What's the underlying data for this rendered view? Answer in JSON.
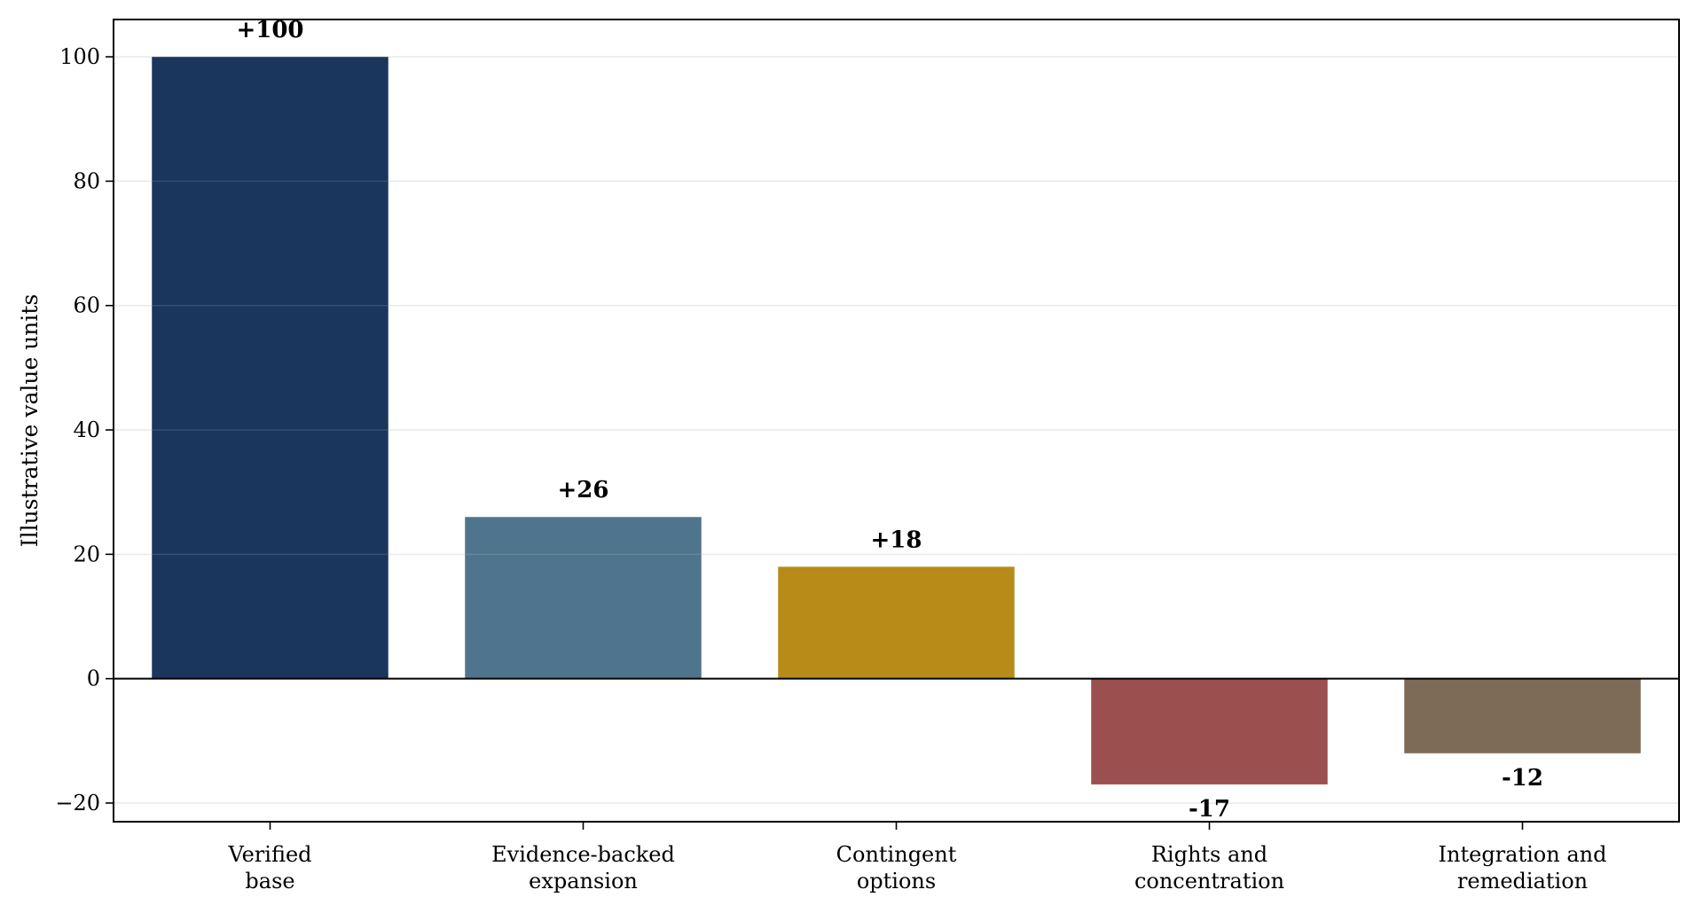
{
  "chart_data": {
    "type": "bar",
    "title": "",
    "xlabel": "",
    "ylabel": "Illustrative value units",
    "categories": [
      [
        "Verified",
        "base"
      ],
      [
        "Evidence-backed",
        "expansion"
      ],
      [
        "Contingent",
        "options"
      ],
      [
        "Rights and",
        "concentration"
      ],
      [
        "Integration and",
        "remediation"
      ]
    ],
    "values": [
      100,
      26,
      18,
      -17,
      -12
    ],
    "value_labels": [
      "+100",
      "+26",
      "+18",
      "-17",
      "-12"
    ],
    "colors": [
      "#1b365d",
      "#4f748e",
      "#b68b18",
      "#9b4f4f",
      "#7d6b58"
    ],
    "ylim": [
      -23,
      106
    ],
    "yticks": [
      -20,
      0,
      20,
      40,
      60,
      80,
      100
    ],
    "ytick_labels": [
      "−20",
      "0",
      "20",
      "40",
      "60",
      "80",
      "100"
    ],
    "grid": "horizontal",
    "zero_line": true,
    "legend": "none"
  }
}
